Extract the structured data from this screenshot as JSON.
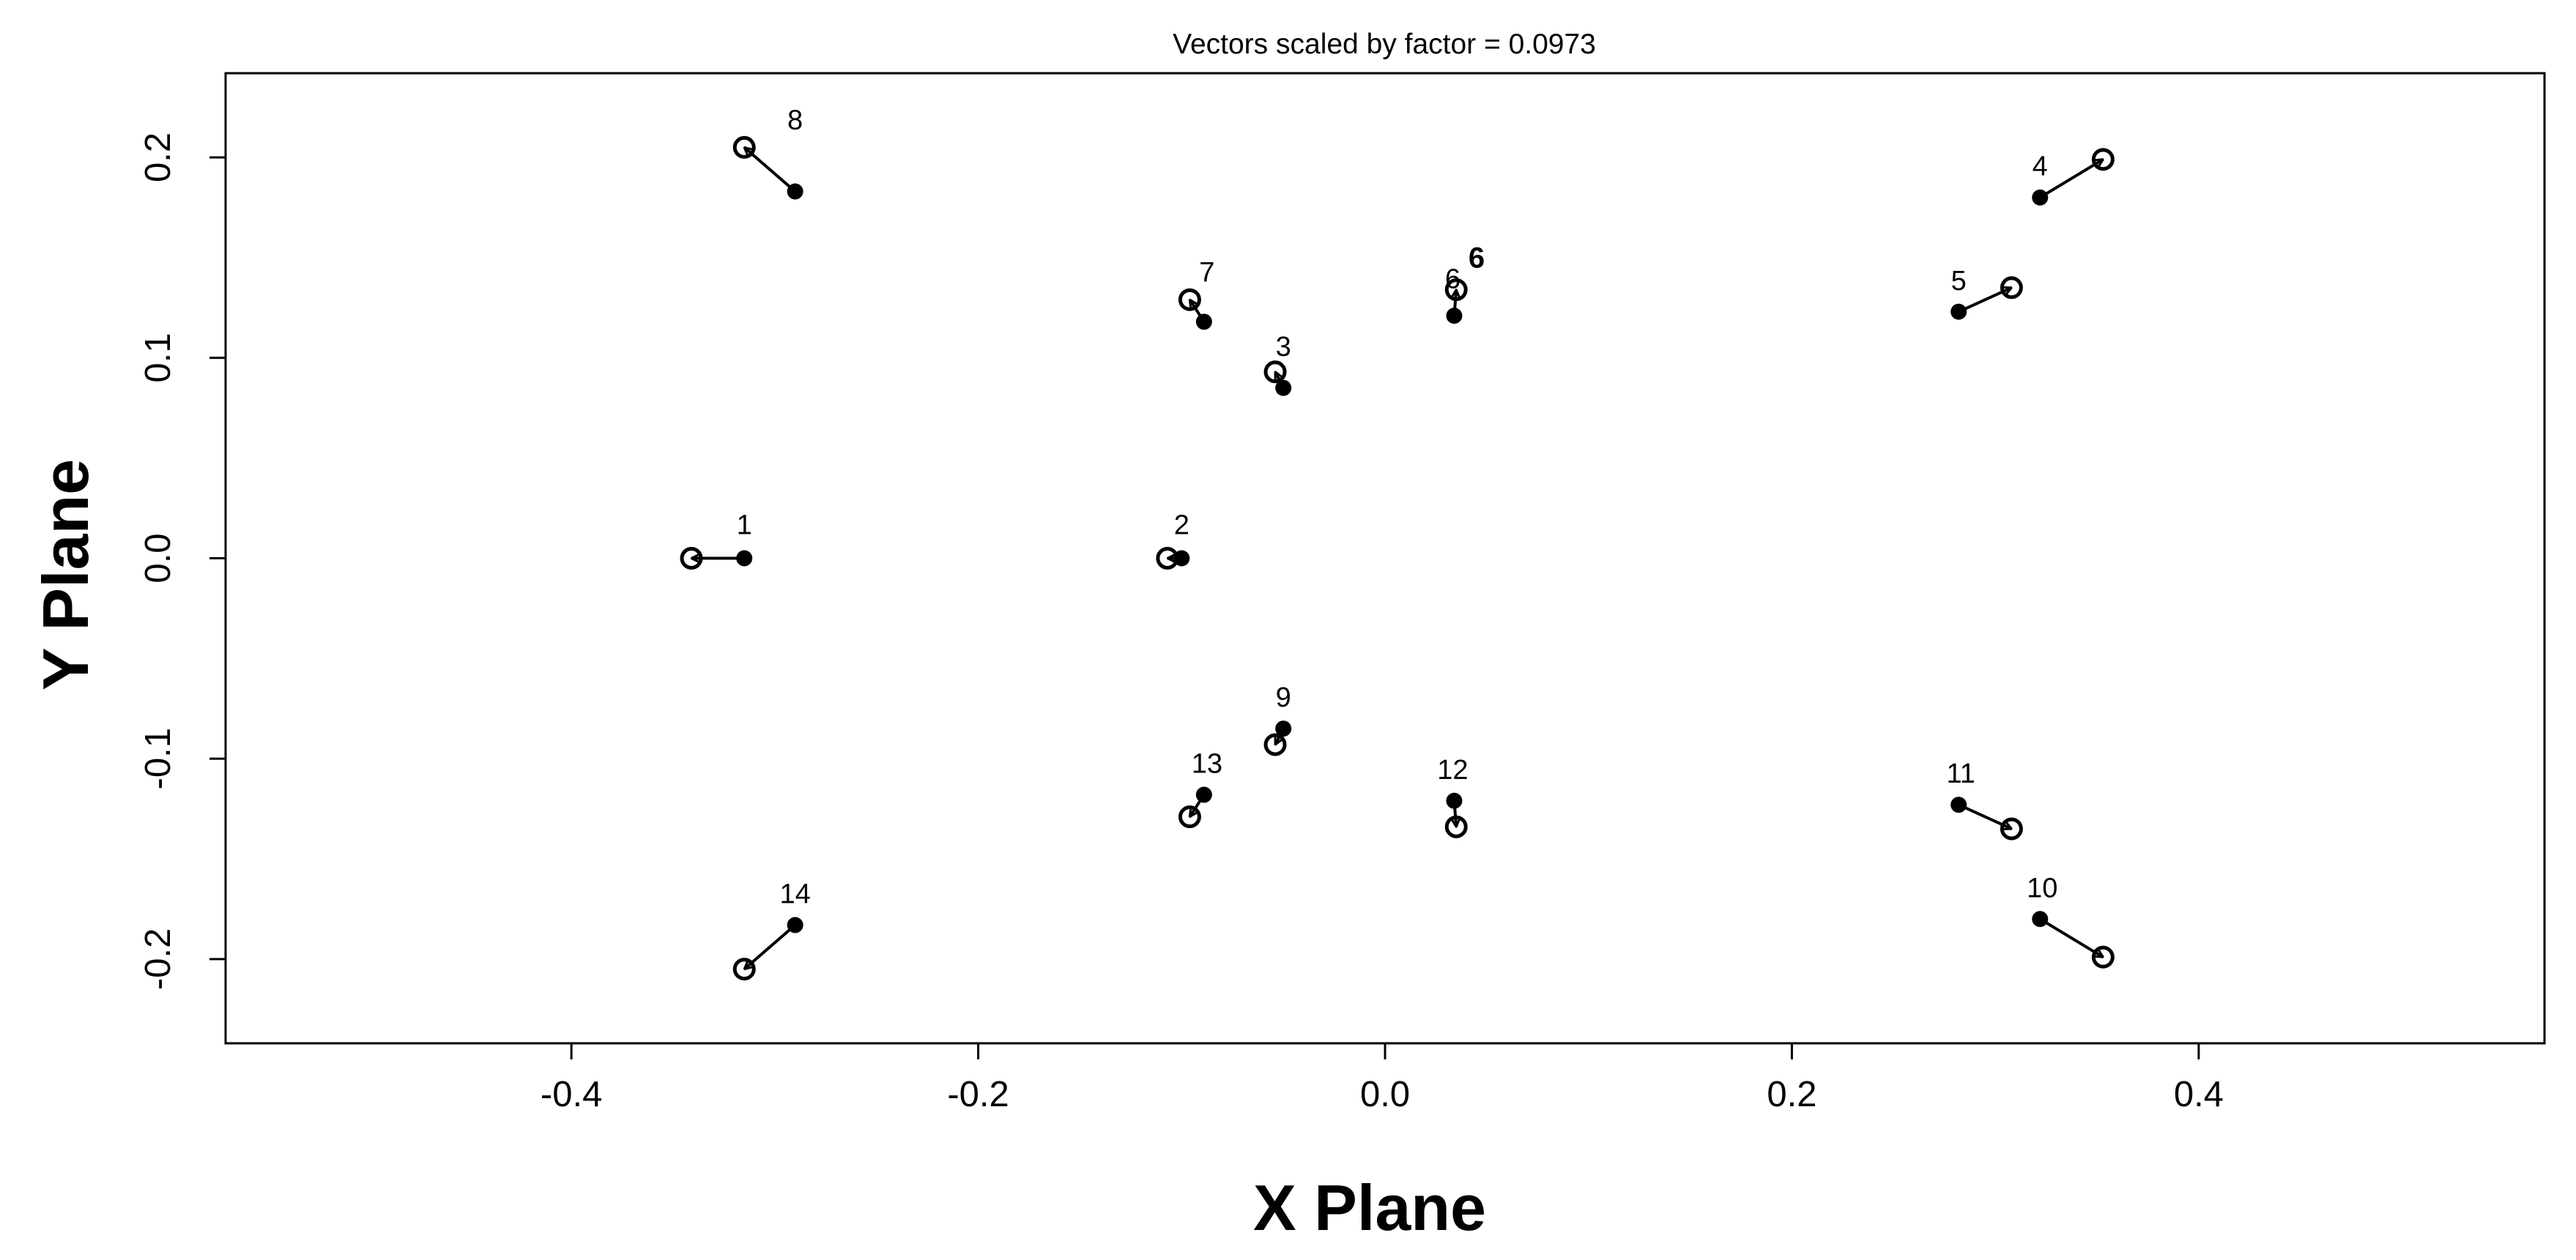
{
  "chart_data": {
    "type": "scatter",
    "title": "Vectors scaled by factor = 0.0973",
    "xlabel": "X Plane",
    "ylabel": "Y Plane",
    "xlim": [
      -0.57,
      0.57
    ],
    "ylim": [
      -0.242,
      0.242
    ],
    "xticks": [
      -0.4,
      -0.2,
      0.0,
      0.2,
      0.4
    ],
    "xtick_labels": [
      "-0.4",
      "-0.2",
      "0.0",
      "0.2",
      "0.4"
    ],
    "yticks": [
      -0.2,
      -0.1,
      0.0,
      0.1,
      0.2
    ],
    "ytick_labels": [
      "-0.2",
      "-0.1",
      "0.0",
      "0.1",
      "0.2"
    ],
    "grid": false,
    "legend": "none",
    "vectors": [
      {
        "label": "1",
        "x0": -0.315,
        "y0": 0.0,
        "x1": -0.341,
        "y1": 0.0
      },
      {
        "label": "2",
        "x0": -0.1,
        "y0": 0.0,
        "x1": -0.107,
        "y1": 0.0
      },
      {
        "label": "3",
        "x0": -0.05,
        "y0": 0.085,
        "x1": -0.054,
        "y1": 0.093
      },
      {
        "label": "4",
        "x0": 0.322,
        "y0": 0.18,
        "x1": 0.353,
        "y1": 0.199
      },
      {
        "label": "5",
        "x0": 0.282,
        "y0": 0.123,
        "x1": 0.308,
        "y1": 0.135
      },
      {
        "label": "6",
        "x0": 0.034,
        "y0": 0.121,
        "x1": 0.035,
        "y1": 0.134
      },
      {
        "label": "7",
        "x0": -0.089,
        "y0": 0.118,
        "x1": -0.096,
        "y1": 0.129
      },
      {
        "label": "8",
        "x0": -0.29,
        "y0": 0.183,
        "x1": -0.315,
        "y1": 0.205
      },
      {
        "label": "9",
        "x0": -0.05,
        "y0": -0.085,
        "x1": -0.054,
        "y1": -0.093
      },
      {
        "label": "10",
        "x0": 0.322,
        "y0": -0.18,
        "x1": 0.353,
        "y1": -0.199
      },
      {
        "label": "11",
        "x0": 0.282,
        "y0": -0.123,
        "x1": 0.308,
        "y1": -0.135
      },
      {
        "label": "12",
        "x0": 0.034,
        "y0": -0.121,
        "x1": 0.035,
        "y1": -0.134
      },
      {
        "label": "13",
        "x0": -0.089,
        "y0": -0.118,
        "x1": -0.096,
        "y1": -0.129
      },
      {
        "label": "14",
        "x0": -0.29,
        "y0": -0.183,
        "x1": -0.315,
        "y1": -0.205
      }
    ],
    "annotations": [
      {
        "text": "6",
        "x": 0.045,
        "y": 0.145
      }
    ],
    "colors": {
      "points": "#000000",
      "vectors": "#000000",
      "frame": "#000000"
    }
  }
}
